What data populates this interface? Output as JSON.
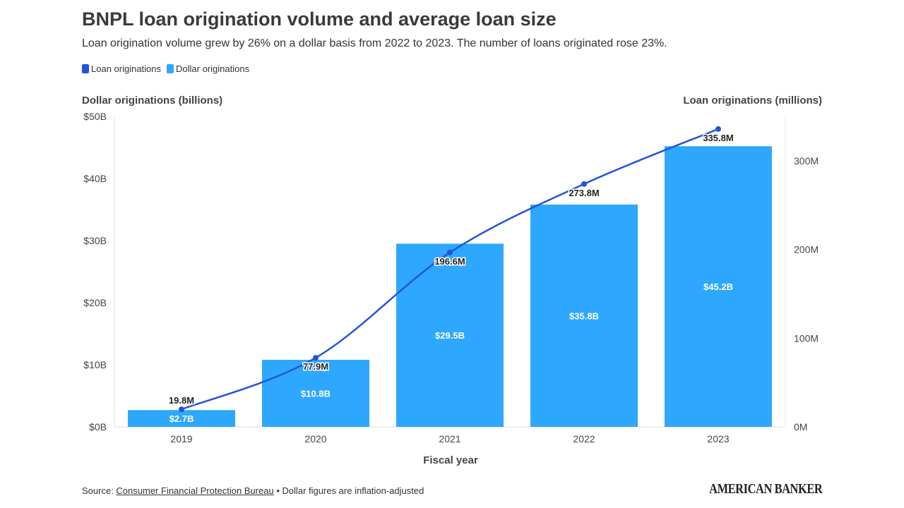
{
  "header": {
    "title": "BNPL loan origination volume and average loan size",
    "subtitle": "Loan origination volume grew by 26% on a dollar basis from 2022 to 2023. The number of loans originated rose 23%."
  },
  "legend": {
    "items": [
      {
        "label": "Loan originations",
        "color": "#2254d9"
      },
      {
        "label": "Dollar originations",
        "color": "#2ea7ff"
      }
    ]
  },
  "axes": {
    "left_title": "Dollar originations (billions)",
    "right_title": "Loan originations (millions)",
    "x_title": "Fiscal year"
  },
  "footer": {
    "source_prefix": "Source: ",
    "source_link": "Consumer Financial Protection Bureau",
    "note": " • Dollar figures are inflation-adjusted",
    "brand": "AMERICAN BANKER"
  },
  "chart_data": {
    "type": "bar+line",
    "categories": [
      "2019",
      "2020",
      "2021",
      "2022",
      "2023"
    ],
    "series": [
      {
        "name": "Dollar originations",
        "type": "bar",
        "axis": "left",
        "values": [
          2.7,
          10.8,
          29.5,
          35.8,
          45.2
        ],
        "labels": [
          "$2.7B",
          "$10.8B",
          "$29.5B",
          "$35.8B",
          "$45.2B"
        ],
        "color": "#2ea7ff"
      },
      {
        "name": "Loan originations",
        "type": "line",
        "axis": "right",
        "values": [
          19.8,
          77.9,
          196.6,
          273.8,
          335.8
        ],
        "labels": [
          "19.8M",
          "77.9M",
          "196.6M",
          "273.8M",
          "335.8M"
        ],
        "color": "#2254d9"
      }
    ],
    "left_axis": {
      "ylim": [
        0,
        50
      ],
      "ticks": [
        0,
        10,
        20,
        30,
        40,
        50
      ],
      "tick_labels": [
        "$0B",
        "$10B",
        "$20B",
        "$30B",
        "$40B",
        "$50B"
      ]
    },
    "right_axis": {
      "ylim": [
        0,
        350
      ],
      "ticks": [
        0,
        100,
        200,
        300
      ],
      "tick_labels": [
        "0M",
        "100M",
        "200M",
        "300M"
      ]
    },
    "xlabel": "Fiscal year",
    "ylabel_left": "Dollar originations (billions)",
    "ylabel_right": "Loan originations (millions)"
  }
}
